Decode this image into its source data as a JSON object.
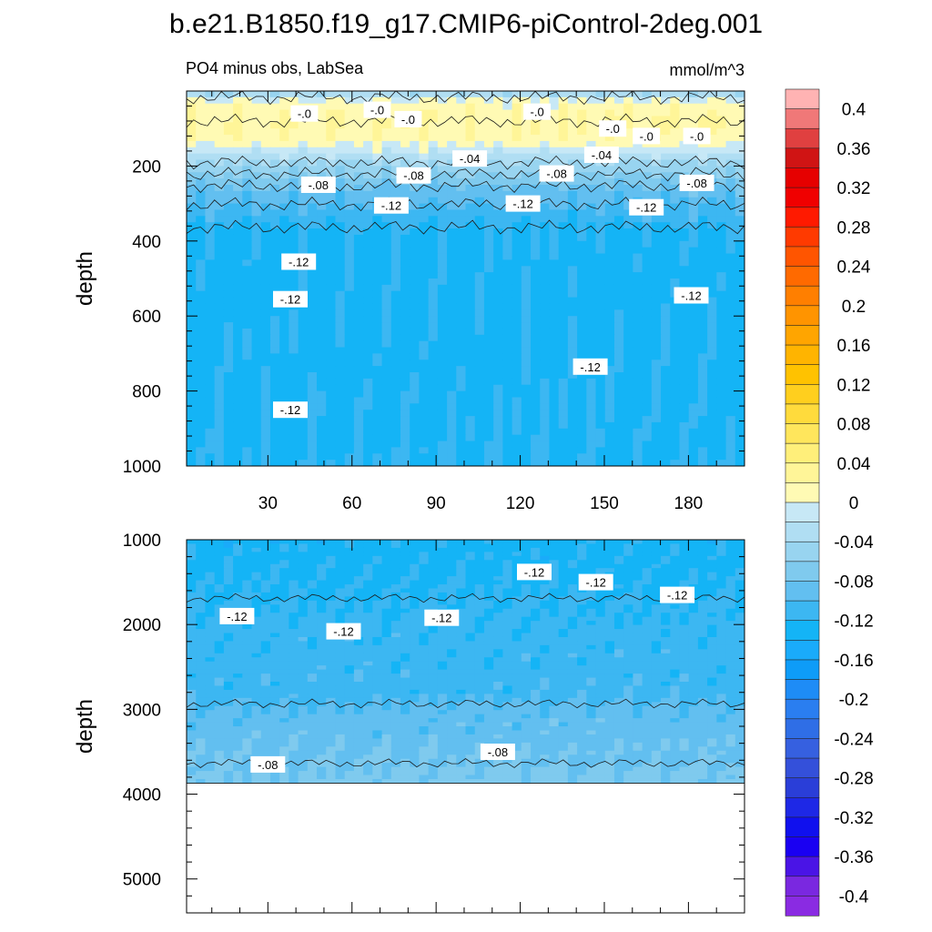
{
  "title": "b.e21.B1850.f19_g17.CMIP6-piControl-2deg.001",
  "chart_data": [
    {
      "type": "heatmap",
      "panel": "upper",
      "left_label": "PO4 minus obs, LabSea",
      "right_label": "mmol/m^3",
      "ylabel": "depth",
      "xlabel": "",
      "xlim": [
        1,
        200
      ],
      "ylim": [
        1000,
        0
      ],
      "x_ticks": [
        30,
        60,
        90,
        120,
        150,
        180
      ],
      "y_ticks": [
        200,
        400,
        600,
        800,
        1000
      ],
      "depth_profile": [
        {
          "depth": 0,
          "value": -0.035
        },
        {
          "depth": 10,
          "value": -0.035
        },
        {
          "depth": 30,
          "value": 0.01
        },
        {
          "depth": 80,
          "value": 0.02
        },
        {
          "depth": 130,
          "value": 0.015
        },
        {
          "depth": 150,
          "value": -0.005
        },
        {
          "depth": 190,
          "value": -0.04
        },
        {
          "depth": 260,
          "value": -0.085
        },
        {
          "depth": 330,
          "value": -0.11
        },
        {
          "depth": 380,
          "value": -0.125
        },
        {
          "depth": 600,
          "value": -0.127
        },
        {
          "depth": 1000,
          "value": -0.122
        }
      ],
      "contour_labels": [
        {
          "text": "-.0",
          "x": 43,
          "depth": 60
        },
        {
          "text": "-.0",
          "x": 69,
          "depth": 50
        },
        {
          "text": "-.0",
          "x": 80,
          "depth": 75
        },
        {
          "text": "-.0",
          "x": 126,
          "depth": 55
        },
        {
          "text": "-.0",
          "x": 153,
          "depth": 100
        },
        {
          "text": "-.0",
          "x": 165,
          "depth": 120
        },
        {
          "text": "-.0",
          "x": 183,
          "depth": 120
        },
        {
          "text": "-.04",
          "x": 102,
          "depth": 180
        },
        {
          "text": "-.04",
          "x": 149,
          "depth": 170
        },
        {
          "text": "-.08",
          "x": 48,
          "depth": 250
        },
        {
          "text": "-.08",
          "x": 82,
          "depth": 225
        },
        {
          "text": "-.08",
          "x": 133,
          "depth": 220
        },
        {
          "text": "-.08",
          "x": 183,
          "depth": 245
        },
        {
          "text": "-.12",
          "x": 41,
          "depth": 455
        },
        {
          "text": "-.12",
          "x": 74,
          "depth": 305
        },
        {
          "text": "-.12",
          "x": 121,
          "depth": 300
        },
        {
          "text": "-.12",
          "x": 165,
          "depth": 310
        },
        {
          "text": "-.12",
          "x": 38,
          "depth": 555
        },
        {
          "text": "-.12",
          "x": 181,
          "depth": 545
        },
        {
          "text": "-.12",
          "x": 145,
          "depth": 735
        },
        {
          "text": "-.12",
          "x": 38,
          "depth": 850
        }
      ]
    },
    {
      "type": "heatmap",
      "panel": "lower",
      "ylabel": "depth",
      "xlabel": "",
      "xlim": [
        1,
        200
      ],
      "ylim": [
        5400,
        1000
      ],
      "y_ticks": [
        1000,
        2000,
        3000,
        4000,
        5000
      ],
      "no_data_below_depth": 3870,
      "depth_profile": [
        {
          "depth": 1000,
          "value": -0.128
        },
        {
          "depth": 1500,
          "value": -0.123
        },
        {
          "depth": 2000,
          "value": -0.115
        },
        {
          "depth": 2800,
          "value": -0.108
        },
        {
          "depth": 3000,
          "value": -0.096
        },
        {
          "depth": 3400,
          "value": -0.085
        },
        {
          "depth": 3870,
          "value": -0.075
        }
      ],
      "contour_labels": [
        {
          "text": "-.12",
          "x": 19,
          "depth": 1900
        },
        {
          "text": "-.12",
          "x": 57,
          "depth": 2080
        },
        {
          "text": "-.12",
          "x": 92,
          "depth": 1920
        },
        {
          "text": "-.12",
          "x": 125,
          "depth": 1380
        },
        {
          "text": "-.12",
          "x": 147,
          "depth": 1500
        },
        {
          "text": "-.12",
          "x": 176,
          "depth": 1650
        },
        {
          "text": "-.08",
          "x": 30,
          "depth": 3650
        },
        {
          "text": "-.08",
          "x": 112,
          "depth": 3500
        }
      ]
    }
  ],
  "colorbar": {
    "labels": [
      "0.4",
      "0.36",
      "0.32",
      "0.28",
      "0.24",
      "0.2",
      "0.16",
      "0.12",
      "0.08",
      "0.04",
      "0",
      "-0.04",
      "-0.08",
      "-0.12",
      "-0.16",
      "-0.2",
      "-0.24",
      "-0.28",
      "-0.32",
      "-0.36",
      "-0.4"
    ],
    "colors": [
      "#ffb3b3",
      "#f07878",
      "#e04040",
      "#d01414",
      "#e60000",
      "#f00000",
      "#ff1a00",
      "#ff3a00",
      "#ff5500",
      "#ff6a00",
      "#ff7f00",
      "#ff9400",
      "#ffa500",
      "#ffb400",
      "#ffc200",
      "#ffcf1e",
      "#ffdb3c",
      "#ffe65c",
      "#ffef7a",
      "#fff598",
      "#fffab4",
      "#c7e8f6",
      "#b0def3",
      "#98d4f0",
      "#7fcaee",
      "#62bff0",
      "#3cb7f2",
      "#14b4f6",
      "#1aabfa",
      "#0e9cf8",
      "#1e8cf6",
      "#2a7ef0",
      "#2f6ee6",
      "#3660e0",
      "#3450da",
      "#2a3ed8",
      "#1e28e6",
      "#1010ee",
      "#1a00f2",
      "#4a14e6",
      "#7a28e0",
      "#8a2be2"
    ]
  }
}
